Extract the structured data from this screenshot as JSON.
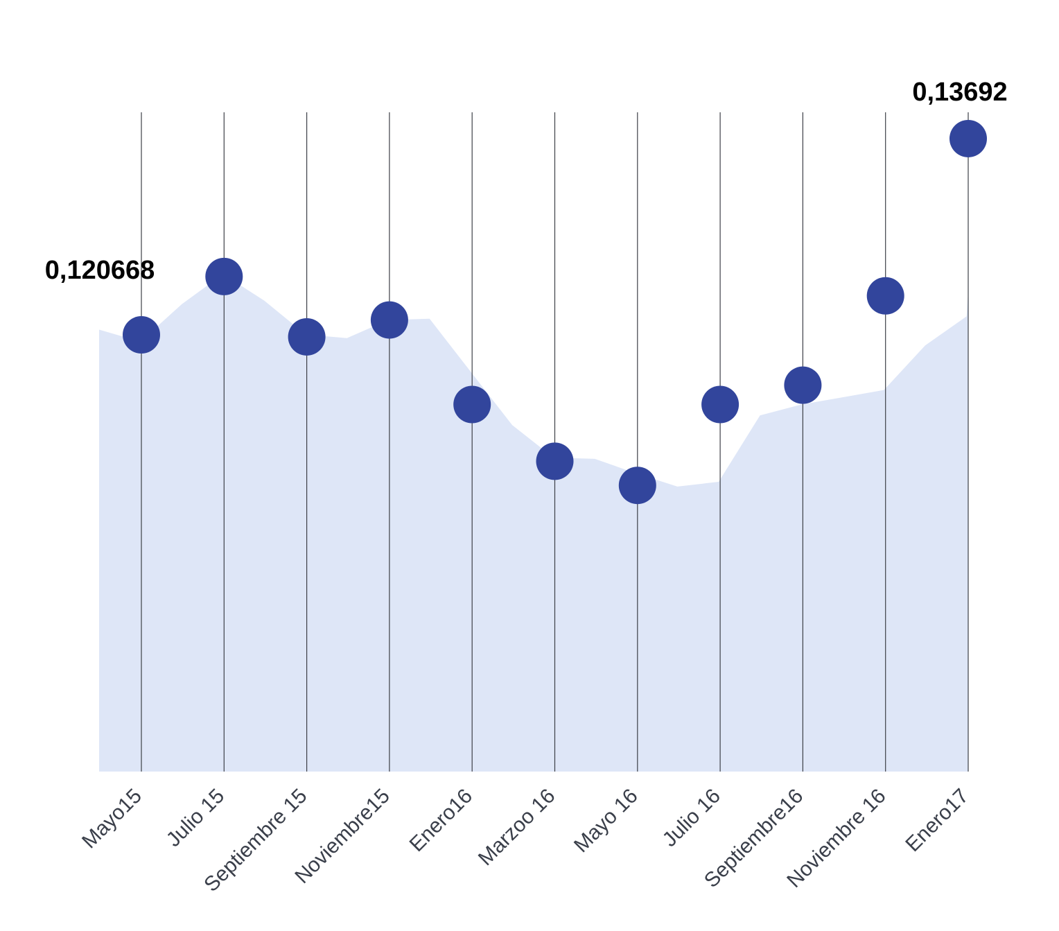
{
  "chart_data": {
    "type": "line",
    "categories": [
      "Mayo15",
      "Julio 15",
      "Septiembre 15",
      "Noviembre15",
      "Enero16",
      "Marzoo 16",
      "Mayo 16",
      "Julio 16",
      "Septiembre16",
      "Noviembre 16",
      "Enero17"
    ],
    "series": [
      {
        "values": [
          0.120668,
          0.1255,
          0.1205,
          0.1219,
          0.1149,
          0.1102,
          0.1082,
          0.1149,
          0.1165,
          0.1239,
          0.13692
        ],
        "color": "#32459c"
      }
    ],
    "area": {
      "values": [
        0.1211,
        0.1201,
        0.1232,
        0.1257,
        0.1235,
        0.1207,
        0.1204,
        0.1219,
        0.122,
        0.1176,
        0.1132,
        0.1105,
        0.1104,
        0.1092,
        0.1081,
        0.1085,
        0.114,
        0.1149,
        0.1155,
        0.1161,
        0.1198,
        0.1222,
        0.1243,
        0.1275
      ],
      "color": "#dee6f7"
    },
    "data_labels": [
      {
        "category": "Mayo15",
        "text": "0,120668"
      },
      {
        "category": "Enero17",
        "text": "0,13692"
      }
    ],
    "gridlines": "vertical",
    "ylim": [
      0.0845,
      0.1391
    ],
    "colors": {
      "point": "#32459c",
      "area": "#dee6f7",
      "gridline": "#3c3f46",
      "tick_label": "#3a3f4a"
    }
  }
}
